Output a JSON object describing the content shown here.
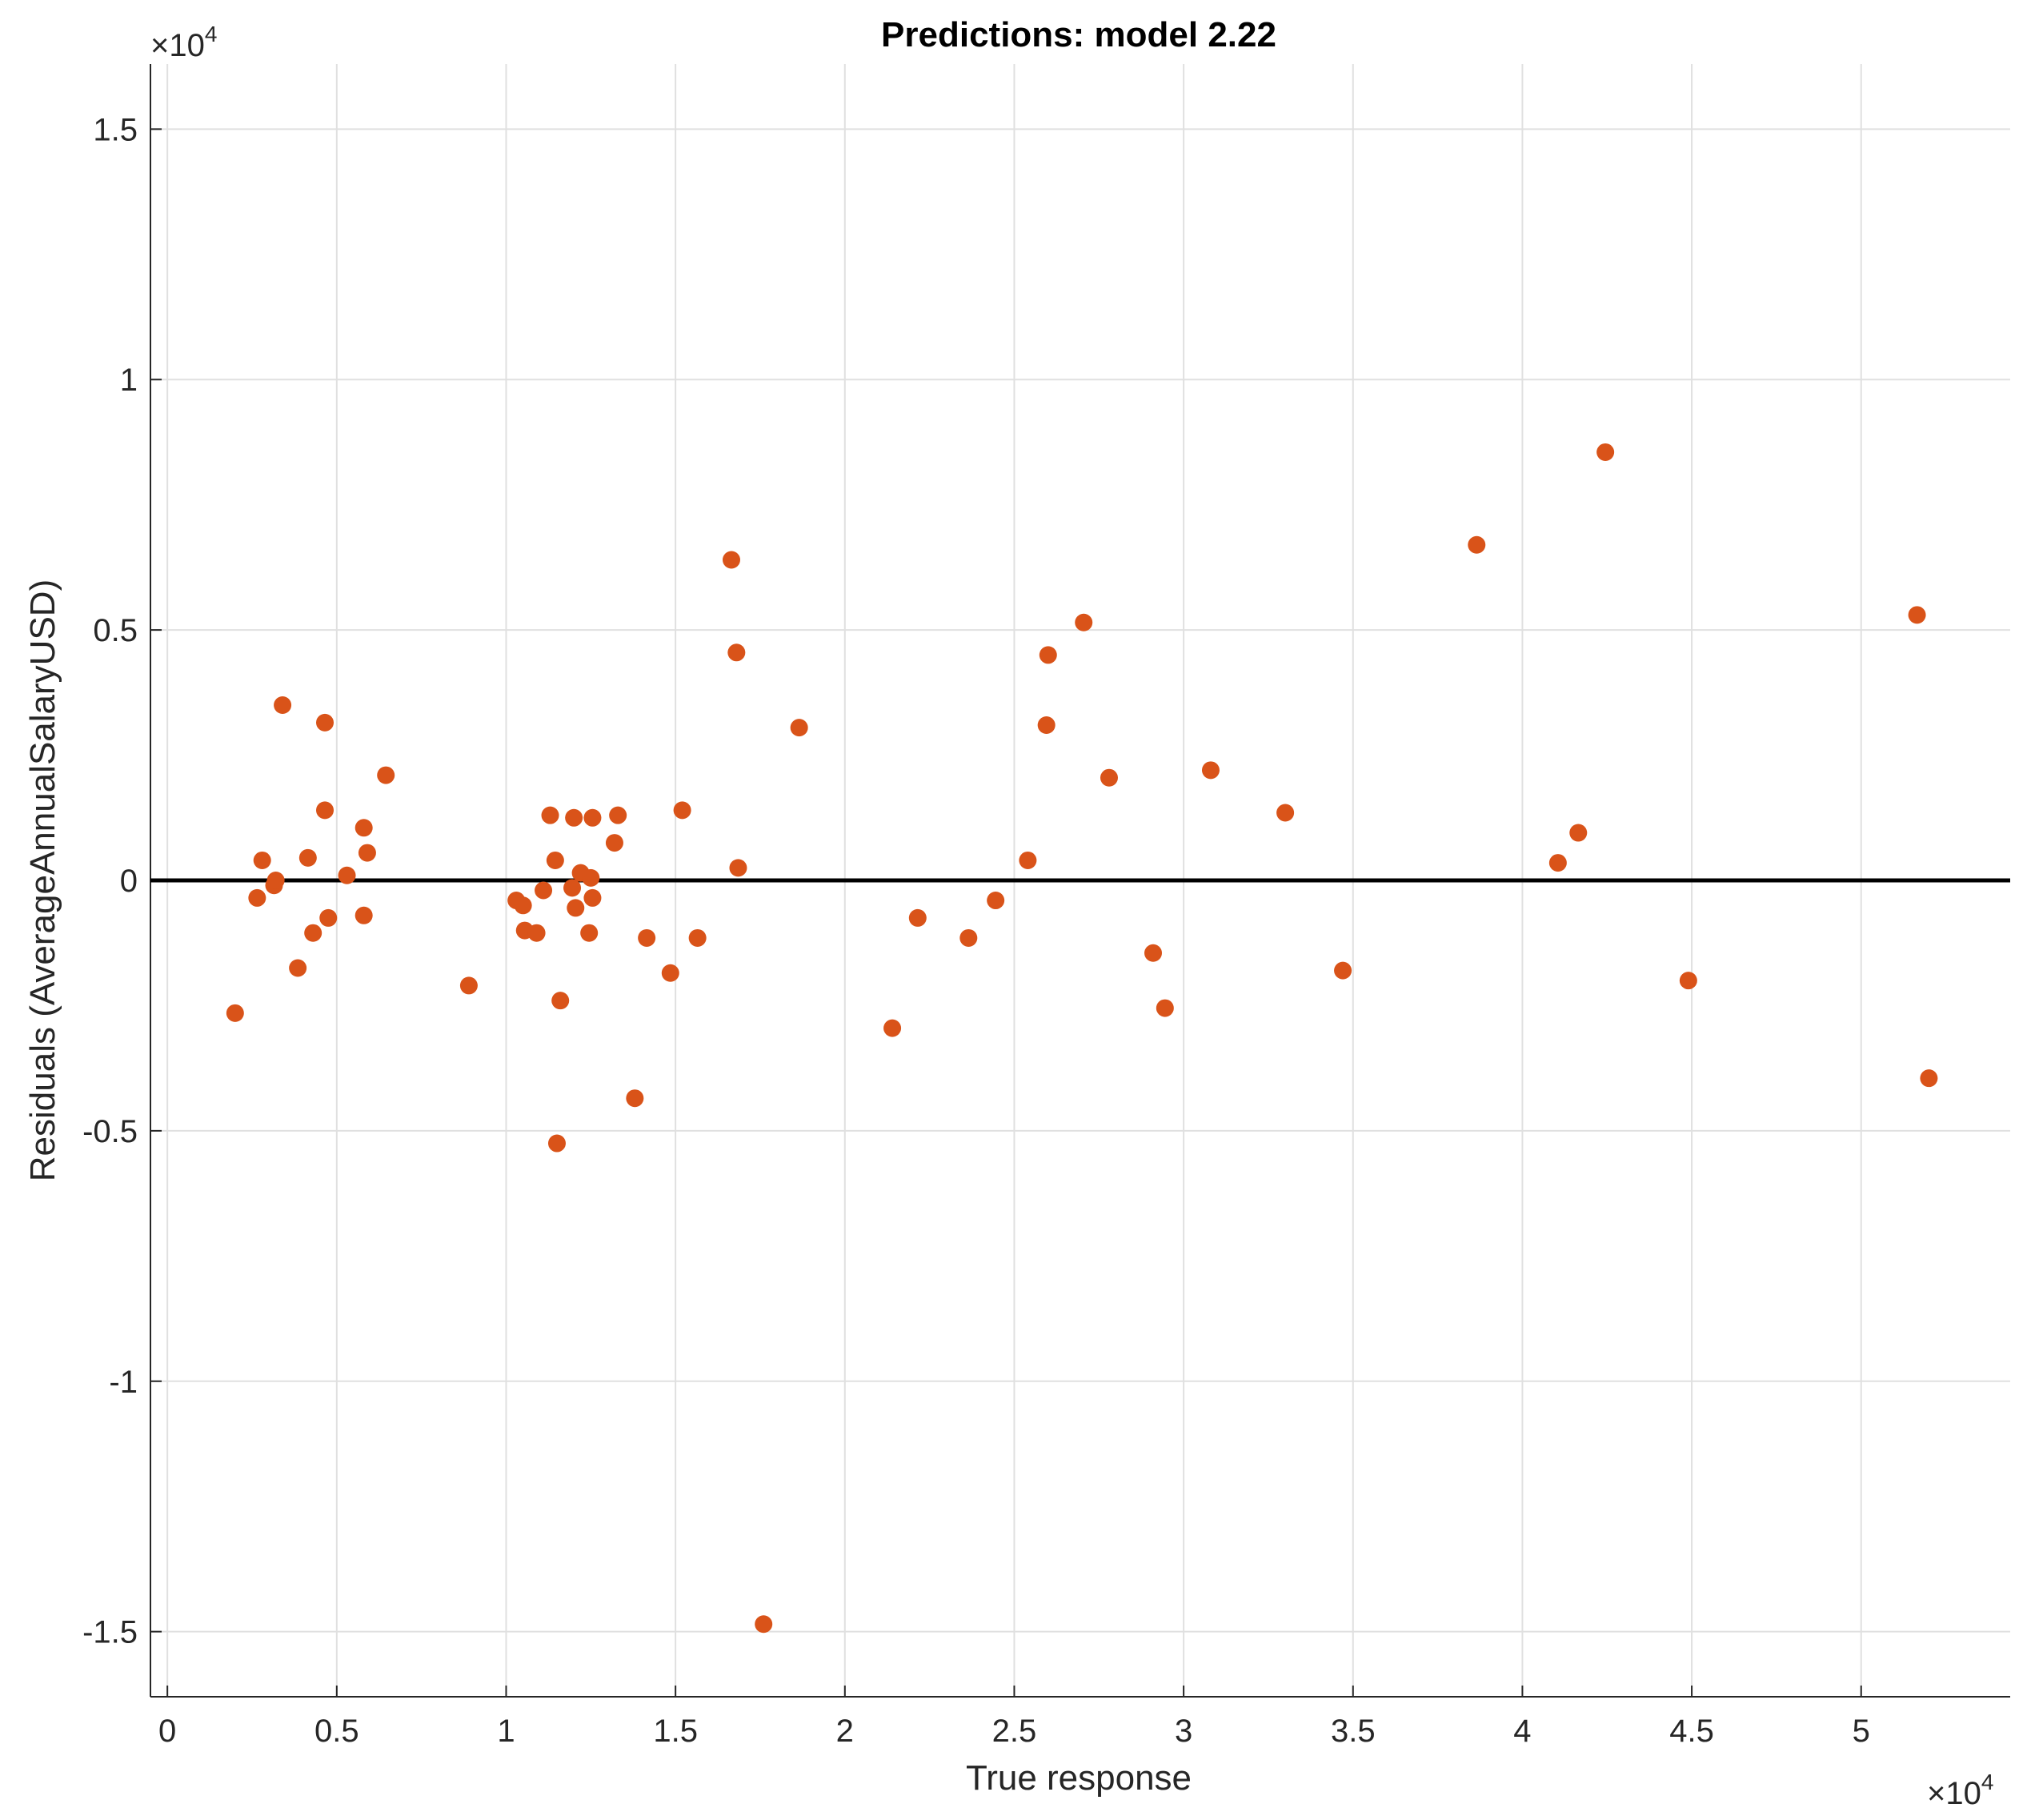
{
  "chart_data": {
    "type": "scatter",
    "title": "Predictions: model 2.22",
    "xlabel": "True response",
    "ylabel": "Residuals (AverageAnnualSalaryUSD)",
    "x_exponent_label": "×10",
    "x_exponent_power": "4",
    "y_exponent_label": "×10",
    "y_exponent_power": "4",
    "xlim": [
      -500,
      54400
    ],
    "ylim": [
      -16300,
      16300
    ],
    "xticks": [
      0,
      5000,
      10000,
      15000,
      20000,
      25000,
      30000,
      35000,
      40000,
      45000,
      50000
    ],
    "xtick_labels": [
      "0",
      "0.5",
      "1",
      "1.5",
      "2",
      "2.5",
      "3",
      "3.5",
      "4",
      "4.5",
      "5"
    ],
    "yticks": [
      15000,
      10000,
      5000,
      0,
      -5000,
      -10000,
      -15000
    ],
    "ytick_labels": [
      "1.5",
      "1",
      "0.5",
      "0",
      "-0.5",
      "-1",
      "-1.5"
    ],
    "grid": true,
    "zero_line": 0,
    "marker_color": "#D95319",
    "line_color": "#000000",
    "points": [
      [
        2000,
        -2650
      ],
      [
        2650,
        -350
      ],
      [
        2800,
        400
      ],
      [
        3150,
        -100
      ],
      [
        3200,
        0
      ],
      [
        3400,
        3500
      ],
      [
        3850,
        -1750
      ],
      [
        4150,
        450
      ],
      [
        4300,
        -1050
      ],
      [
        4650,
        3150
      ],
      [
        4650,
        1400
      ],
      [
        4750,
        -750
      ],
      [
        5300,
        100
      ],
      [
        5800,
        -700
      ],
      [
        5800,
        1050
      ],
      [
        5900,
        550
      ],
      [
        6450,
        2100
      ],
      [
        8900,
        -2100
      ],
      [
        10300,
        -400
      ],
      [
        10500,
        -500
      ],
      [
        10550,
        -1000
      ],
      [
        10900,
        -1050
      ],
      [
        11100,
        -200
      ],
      [
        11300,
        1300
      ],
      [
        11450,
        400
      ],
      [
        11500,
        -5250
      ],
      [
        11600,
        -2400
      ],
      [
        11950,
        -150
      ],
      [
        12000,
        1250
      ],
      [
        12050,
        -550
      ],
      [
        12200,
        150
      ],
      [
        12450,
        -1050
      ],
      [
        12500,
        50
      ],
      [
        12550,
        1250
      ],
      [
        12550,
        -350
      ],
      [
        13200,
        750
      ],
      [
        13300,
        1300
      ],
      [
        13800,
        -4350
      ],
      [
        14150,
        -1150
      ],
      [
        14850,
        -1850
      ],
      [
        15200,
        1400
      ],
      [
        15650,
        -1150
      ],
      [
        16650,
        6400
      ],
      [
        16800,
        4550
      ],
      [
        16850,
        250
      ],
      [
        17600,
        -14850
      ],
      [
        18650,
        3050
      ],
      [
        21400,
        -2950
      ],
      [
        22150,
        -750
      ],
      [
        23650,
        -1150
      ],
      [
        24450,
        -400
      ],
      [
        25400,
        400
      ],
      [
        25950,
        3100
      ],
      [
        26000,
        4500
      ],
      [
        27050,
        5150
      ],
      [
        27800,
        2050
      ],
      [
        29100,
        -1450
      ],
      [
        29450,
        -2550
      ],
      [
        30800,
        2200
      ],
      [
        33000,
        1350
      ],
      [
        34700,
        -1800
      ],
      [
        38650,
        6700
      ],
      [
        41050,
        350
      ],
      [
        41650,
        950
      ],
      [
        42450,
        8550
      ],
      [
        44900,
        -2000
      ],
      [
        51650,
        5300
      ],
      [
        52000,
        -3950
      ]
    ]
  }
}
